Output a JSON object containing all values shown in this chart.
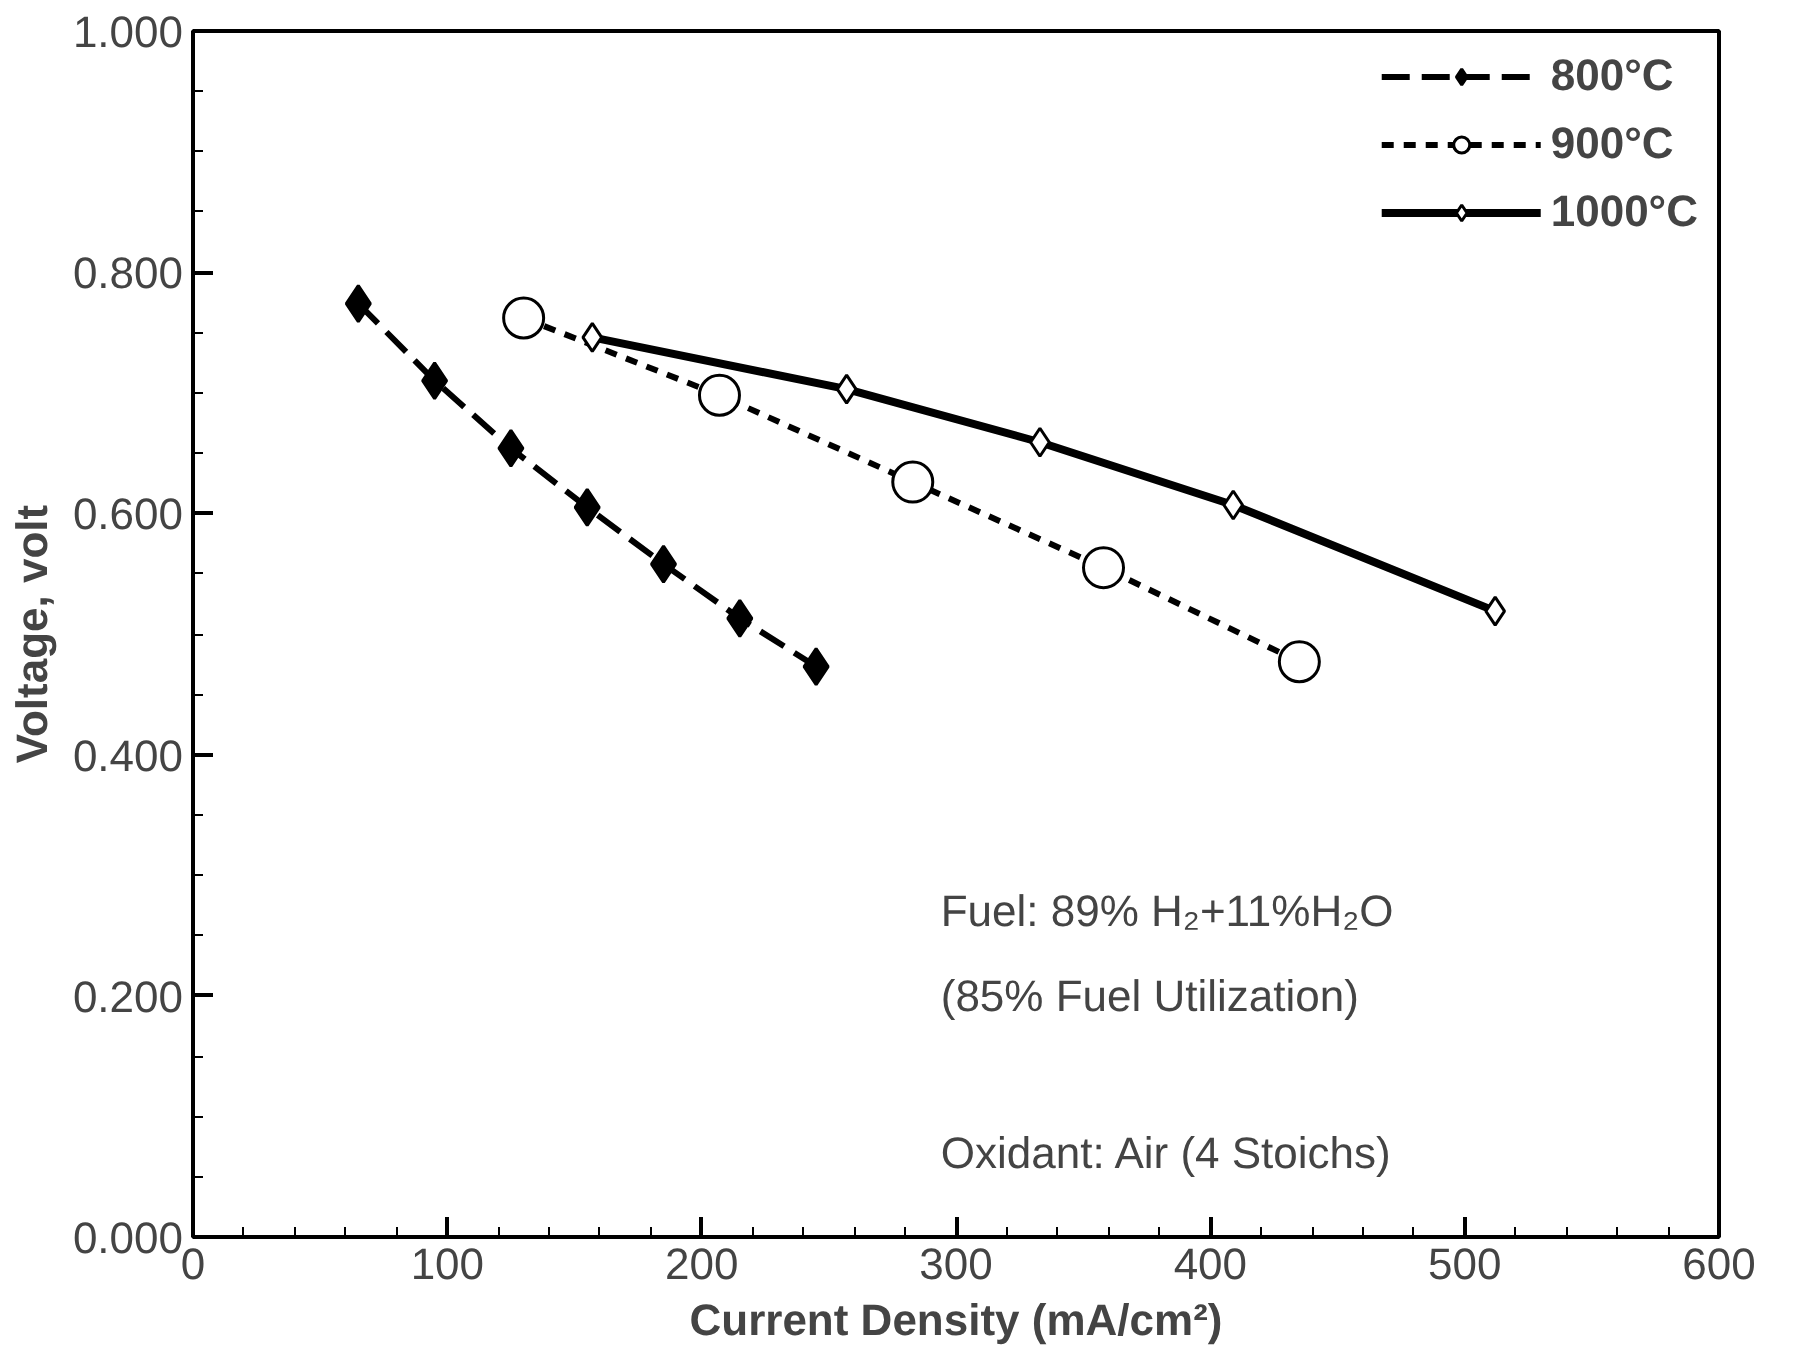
{
  "chart_data": {
    "type": "line",
    "xlabel": "Current Density (mA/cm²)",
    "ylabel": "Voltage, volt",
    "xlim": [
      0,
      600
    ],
    "ylim": [
      0,
      1
    ],
    "xticks": [
      0,
      100,
      200,
      300,
      400,
      500,
      600
    ],
    "yticks": [
      {
        "value": 0,
        "label": "0.000"
      },
      {
        "value": 0.2,
        "label": "0.200"
      },
      {
        "value": 0.4,
        "label": "0.400"
      },
      {
        "value": 0.6,
        "label": "0.600"
      },
      {
        "value": 0.8,
        "label": "0.800"
      },
      {
        "value": 1,
        "label": "1.000"
      }
    ],
    "grid": false,
    "legend": "top right",
    "series": [
      {
        "name": "800°C",
        "color": "#000000",
        "marker": "diamond",
        "line_style": "dashed",
        "x": [
          65,
          95,
          125,
          155,
          185,
          215,
          245
        ],
        "values": [
          0.774,
          0.71,
          0.654,
          0.605,
          0.558,
          0.513,
          0.473
        ]
      },
      {
        "name": "900°C",
        "color": "#000000",
        "marker": "circle",
        "line_style": "dotted",
        "x": [
          130,
          207,
          283,
          358,
          435
        ],
        "values": [
          0.762,
          0.698,
          0.626,
          0.555,
          0.477
        ]
      },
      {
        "name": "1000°C",
        "color": "#000000",
        "marker": "diamond",
        "line_style": "solid",
        "x": [
          157,
          257,
          333,
          409,
          512
        ],
        "values": [
          0.746,
          0.703,
          0.659,
          0.607,
          0.519
        ]
      }
    ],
    "annotations": [
      "Fuel: 89% H₂+11%H₂O",
      "(85% Fuel Utilization)",
      "Oxidant: Air (4 Stoichs)"
    ]
  }
}
